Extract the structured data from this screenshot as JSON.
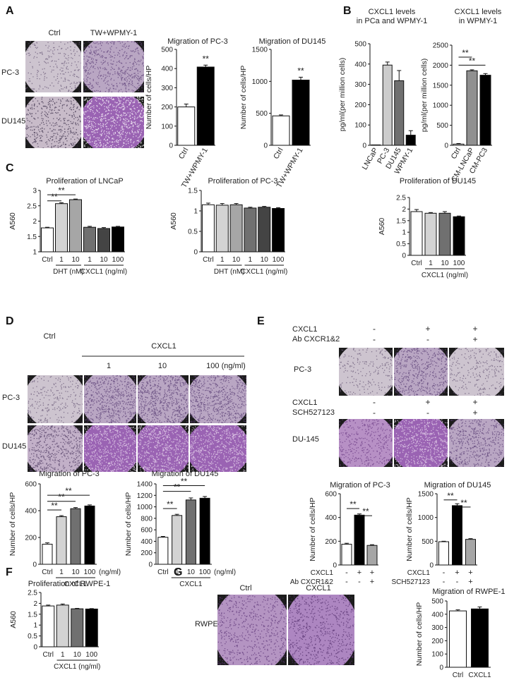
{
  "panels": {
    "A": {
      "label": "A",
      "col_ctrl": "Ctrl",
      "col_tw": "TW+WPMY-1",
      "row_pc3": "PC-3",
      "row_du145": "DU145"
    },
    "B": {
      "label": "B"
    },
    "C": {
      "label": "C"
    },
    "D": {
      "label": "D",
      "ctrl": "Ctrl",
      "cxcl1": "CXCL1",
      "c1": "1",
      "c10": "10",
      "c100": "100 (ng/ml)",
      "row_pc3": "PC-3",
      "row_du145": "DU145"
    },
    "E": {
      "label": "E",
      "row_cxcl1_a": "CXCL1",
      "row_ab": "Ab CXCR1&2",
      "row_cxcl1_b": "CXCL1",
      "row_sch": "SCH527123",
      "signs_cxcl1_a": [
        "-",
        "+",
        "+"
      ],
      "signs_ab": [
        "-",
        "-",
        "+"
      ],
      "signs_cxcl1_b": [
        "-",
        "+",
        "+"
      ],
      "signs_sch": [
        "-",
        "-",
        "+"
      ],
      "img_pc3": "PC-3",
      "img_du145": "DU-145"
    },
    "F": {
      "label": "F"
    },
    "G": {
      "label": "G",
      "col_ctrl": "Ctrl",
      "col_cxcl1": "CXCL1",
      "row_rwpe": "RWPE-1"
    }
  },
  "chart_data": [
    {
      "id": "A1",
      "type": "bar",
      "title": "Migration of PC-3",
      "ylabel": "Number of cells/HP",
      "categories": [
        "Ctrl",
        "TW+WPMY-1"
      ],
      "values": [
        200,
        408
      ],
      "errors": [
        15,
        10
      ],
      "colors": [
        "#ffffff",
        "#000000"
      ],
      "ylim": [
        0,
        500
      ],
      "yticks": [
        "0",
        "100",
        "200",
        "300",
        "400",
        "500"
      ],
      "sig": [
        {
          "bar": 1,
          "text": "**"
        }
      ]
    },
    {
      "id": "A2",
      "type": "bar",
      "title": "Migration of DU145",
      "ylabel": "Number of cells/HP",
      "categories": [
        "Ctrl",
        "TW+WPMY-1"
      ],
      "values": [
        460,
        1020
      ],
      "errors": [
        15,
        45
      ],
      "colors": [
        "#ffffff",
        "#000000"
      ],
      "ylim": [
        0,
        1500
      ],
      "yticks": [
        "0",
        "500",
        "1000",
        "1500"
      ],
      "sig": [
        {
          "bar": 1,
          "text": "**"
        }
      ]
    },
    {
      "id": "B1",
      "type": "bar",
      "title": "CXCL1 levels",
      "subtitle": "in PCa and WPMY-1",
      "ylabel": "pg/ml(per million cells)",
      "categories": [
        "LNCaP",
        "PC-3",
        "DU145",
        "WPMY-1"
      ],
      "values": [
        0,
        395,
        318,
        50
      ],
      "errors": [
        0,
        15,
        50,
        22
      ],
      "colors": [
        "#ffffff",
        "#cccccc",
        "#707070",
        "#000000"
      ],
      "ylim": [
        0,
        500
      ],
      "yticks": [
        "0",
        "100",
        "200",
        "300",
        "400",
        "500"
      ]
    },
    {
      "id": "B2",
      "type": "bar",
      "title": "CXCL1 levels",
      "subtitle": "in WPMY-1",
      "ylabel": "pg/ml(per million cells)",
      "categories": [
        "Ctrl",
        "CM-LNCaP",
        "CM-PC3"
      ],
      "values": [
        30,
        1860,
        1750
      ],
      "errors": [
        15,
        25,
        40
      ],
      "colors": [
        "#ffffff",
        "#909090",
        "#000000"
      ],
      "ylim": [
        0,
        2500
      ],
      "yticks": [
        "0",
        "500",
        "1000",
        "1500",
        "2000",
        "2500"
      ],
      "brackets": [
        {
          "from": 0,
          "to": 1,
          "y": 2200,
          "text": "**"
        },
        {
          "from": 0,
          "to": 2,
          "y": 2000,
          "text": "**"
        }
      ]
    },
    {
      "id": "C1",
      "type": "bar",
      "title": "Proliferation of LNCaP",
      "ylabel": "A560",
      "categories": [
        "Ctrl",
        "1",
        "10",
        "1",
        "10",
        "100"
      ],
      "values": [
        1.78,
        2.57,
        2.7,
        1.8,
        1.76,
        1.81
      ],
      "errors": [
        0.02,
        0.03,
        0.02,
        0.03,
        0.03,
        0.02
      ],
      "colors": [
        "#ffffff",
        "#d3d3d3",
        "#a6a6a6",
        "#707070",
        "#444444",
        "#000000"
      ],
      "ylim": [
        1,
        3
      ],
      "yticks": [
        "1",
        "1.5",
        "2",
        "2.5",
        "3"
      ],
      "groups": [
        {
          "from": 1,
          "to": 2,
          "label": "DHT (nM)"
        },
        {
          "from": 3,
          "to": 5,
          "label": "CXCL1  (ng/ml)"
        }
      ],
      "brackets": [
        {
          "from": 0,
          "to": 2,
          "y": 2.86,
          "text": "**"
        },
        {
          "from": 0,
          "to": 1,
          "y": 2.66,
          "text": "**"
        }
      ]
    },
    {
      "id": "C2",
      "type": "bar",
      "title": "Proliferation of PC-3",
      "ylabel": "A560",
      "categories": [
        "Ctrl",
        "1",
        "10",
        "1",
        "10",
        "100"
      ],
      "values": [
        1.15,
        1.14,
        1.15,
        1.07,
        1.09,
        1.06
      ],
      "errors": [
        0.04,
        0.04,
        0.03,
        0.02,
        0.02,
        0.02
      ],
      "colors": [
        "#ffffff",
        "#d3d3d3",
        "#a6a6a6",
        "#707070",
        "#444444",
        "#000000"
      ],
      "ylim": [
        0,
        1.5
      ],
      "yticks": [
        "0",
        "0.5",
        "1",
        "1.5"
      ],
      "groups": [
        {
          "from": 1,
          "to": 2,
          "label": "DHT (nM)"
        },
        {
          "from": 3,
          "to": 5,
          "label": "CXCL1  (ng/ml)"
        }
      ]
    },
    {
      "id": "C3",
      "type": "bar",
      "title": "Proliferation of DU145",
      "ylabel": "A560",
      "categories": [
        "Ctrl",
        "1",
        "10",
        "100"
      ],
      "values": [
        1.89,
        1.82,
        1.82,
        1.67
      ],
      "errors": [
        0.09,
        0.03,
        0.07,
        0.03
      ],
      "colors": [
        "#ffffff",
        "#d3d3d3",
        "#707070",
        "#000000"
      ],
      "ylim": [
        0,
        2.5
      ],
      "yticks": [
        "0",
        "0.5",
        "1",
        "1.5",
        "2",
        "2.5"
      ],
      "groups": [
        {
          "from": 1,
          "to": 3,
          "label": "CXCL1  (ng/ml)"
        }
      ]
    },
    {
      "id": "D1",
      "type": "bar",
      "title": "Migration of PC-3",
      "ylabel": "Number of cells/HP",
      "categories": [
        "Ctrl",
        "1",
        "10",
        "100"
      ],
      "values": [
        150,
        355,
        415,
        435
      ],
      "errors": [
        10,
        8,
        8,
        8
      ],
      "colors": [
        "#ffffff",
        "#d3d3d3",
        "#707070",
        "#000000"
      ],
      "ylim": [
        0,
        600
      ],
      "yticks": [
        "0",
        "200",
        "400",
        "600"
      ],
      "unit_label": "(ng/ml)",
      "groups": [
        {
          "from": 1,
          "to": 3,
          "label": "CXCL1"
        }
      ],
      "brackets": [
        {
          "from": 0,
          "to": 3,
          "y": 515,
          "text": "**"
        },
        {
          "from": 0,
          "to": 2,
          "y": 470,
          "text": "**"
        },
        {
          "from": 0,
          "to": 1,
          "y": 405,
          "text": "**"
        }
      ]
    },
    {
      "id": "D2",
      "type": "bar",
      "title": "Migration of DU145",
      "ylabel": "Number of cells/HP",
      "categories": [
        "Ctrl",
        "1",
        "10",
        "100"
      ],
      "values": [
        470,
        850,
        1120,
        1150
      ],
      "errors": [
        15,
        20,
        35,
        30
      ],
      "colors": [
        "#ffffff",
        "#d3d3d3",
        "#707070",
        "#000000"
      ],
      "ylim": [
        0,
        1400
      ],
      "yticks": [
        "0",
        "200",
        "400",
        "600",
        "800",
        "1000",
        "1200",
        "1400"
      ],
      "unit_label": "(ng/ml)",
      "groups": [
        {
          "from": 1,
          "to": 3,
          "label": "CXCL1"
        }
      ],
      "brackets": [
        {
          "from": 0,
          "to": 3,
          "y": 1370,
          "text": "**"
        },
        {
          "from": 0,
          "to": 2,
          "y": 1270,
          "text": "**"
        },
        {
          "from": 0,
          "to": 1,
          "y": 970,
          "text": "**"
        }
      ]
    },
    {
      "id": "E1",
      "type": "bar",
      "title": "Migration of PC-3",
      "ylabel": "Number of cells/HP",
      "categories": [
        "",
        "",
        ""
      ],
      "values": [
        175,
        420,
        165
      ],
      "errors": [
        8,
        10,
        6
      ],
      "colors": [
        "#ffffff",
        "#000000",
        "#a6a6a6"
      ],
      "ylim": [
        0,
        600
      ],
      "yticks": [
        "0",
        "200",
        "400",
        "600"
      ],
      "sign_rows": [
        {
          "label": "CXCL1",
          "signs": [
            "-",
            "+",
            "+"
          ]
        },
        {
          "label": "Ab CXCR1&2",
          "signs": [
            "-",
            "-",
            "+"
          ]
        }
      ],
      "brackets": [
        {
          "from": 0,
          "to": 1,
          "y": 475,
          "text": "**"
        },
        {
          "from": 1,
          "to": 2,
          "y": 415,
          "text": "**"
        }
      ]
    },
    {
      "id": "E2",
      "type": "bar",
      "title": "Migration of DU145",
      "ylabel": "Number of cells/HP",
      "categories": [
        "",
        "",
        ""
      ],
      "values": [
        490,
        1250,
        540
      ],
      "errors": [
        10,
        40,
        15
      ],
      "colors": [
        "#ffffff",
        "#000000",
        "#a6a6a6"
      ],
      "ylim": [
        0,
        1500
      ],
      "yticks": [
        "0",
        "500",
        "1000",
        "1500"
      ],
      "sign_rows": [
        {
          "label": "CXCL1",
          "signs": [
            "-",
            "+",
            "+"
          ]
        },
        {
          "label": "SCH527123",
          "signs": [
            "-",
            "-",
            "+"
          ]
        }
      ],
      "brackets": [
        {
          "from": 0,
          "to": 1,
          "y": 1370,
          "text": "**"
        },
        {
          "from": 1,
          "to": 2,
          "y": 1220,
          "text": "**"
        }
      ]
    },
    {
      "id": "F1",
      "type": "bar",
      "title": "Proliferation of RWPE-1",
      "ylabel": "A560",
      "categories": [
        "Ctrl",
        "1",
        "10",
        "100"
      ],
      "values": [
        1.88,
        1.92,
        1.75,
        1.74
      ],
      "errors": [
        0.04,
        0.05,
        0.02,
        0.02
      ],
      "colors": [
        "#ffffff",
        "#d3d3d3",
        "#707070",
        "#000000"
      ],
      "ylim": [
        0,
        2.5
      ],
      "yticks": [
        "0",
        "0.5",
        "1",
        "1.5",
        "2",
        "2.5"
      ],
      "groups": [
        {
          "from": 1,
          "to": 3,
          "label": "CXCL1  (ng/ml)"
        }
      ]
    },
    {
      "id": "G1",
      "type": "bar",
      "title": "Migration of RWPE-1",
      "ylabel": "Number of cells/HP",
      "categories": [
        "Ctrl",
        "CXCL1"
      ],
      "values": [
        425,
        440
      ],
      "errors": [
        8,
        15
      ],
      "colors": [
        "#ffffff",
        "#000000"
      ],
      "ylim": [
        0,
        500
      ],
      "yticks": [
        "0",
        "100",
        "200",
        "300",
        "400",
        "500"
      ]
    }
  ]
}
